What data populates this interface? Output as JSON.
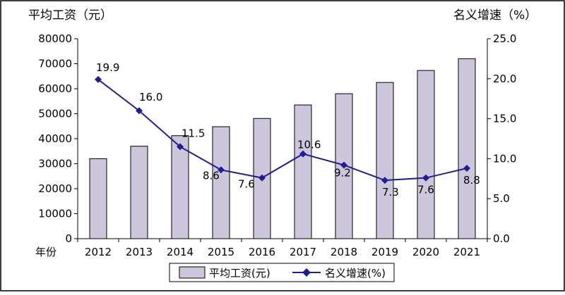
{
  "chart_data": {
    "type": "bar+line",
    "x_label": "年份",
    "categories": [
      "2012",
      "2013",
      "2014",
      "2015",
      "2016",
      "2017",
      "2018",
      "2019",
      "2020",
      "2021"
    ],
    "series": [
      {
        "name": "平均工资(元)",
        "type": "bar",
        "axis": "left",
        "values": [
          32000,
          37000,
          41200,
          44800,
          48100,
          53500,
          58000,
          62500,
          67300,
          72000
        ]
      },
      {
        "name": "名义增速(%)",
        "type": "line",
        "axis": "right",
        "values": [
          19.9,
          16.0,
          11.5,
          8.6,
          7.6,
          10.6,
          9.2,
          7.3,
          7.6,
          8.8
        ],
        "labels": [
          "19.9",
          "16.0",
          "11.5",
          "8.6",
          "7.6",
          "10.6",
          "9.2",
          "7.3",
          "7.6",
          "8.8"
        ]
      }
    ],
    "left_axis": {
      "title": "平均工资（元）",
      "range": [
        0,
        80000
      ],
      "ticks": [
        "0",
        "10000",
        "20000",
        "30000",
        "40000",
        "50000",
        "60000",
        "70000",
        "80000"
      ]
    },
    "right_axis": {
      "title": "名义增速（%）",
      "range": [
        0,
        25
      ],
      "ticks": [
        "0.0",
        "5.0",
        "10.0",
        "15.0",
        "20.0",
        "25.0"
      ]
    },
    "legend": {
      "position": "bottom",
      "items": [
        "平均工资(元)",
        "名义增速(%)"
      ]
    },
    "grid": false,
    "colors": {
      "bar_fill": "#cdc6dc",
      "bar_stroke": "#000000",
      "line": "#1f1f8f",
      "marker": "#1f1f8f"
    }
  }
}
